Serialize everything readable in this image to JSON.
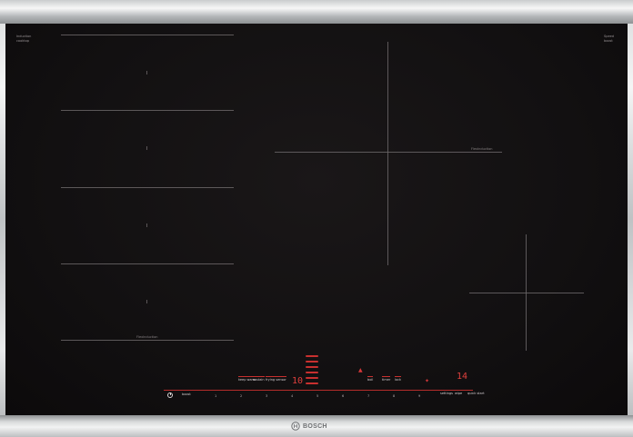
{
  "cooktop": {
    "top_left_label": [
      "Induction",
      "cooktop"
    ],
    "top_right_label": [
      "Speed",
      "boost"
    ],
    "flex_zone_label": "FlexInduction",
    "brand": "BOSCH",
    "controls": {
      "left_buttons": [
        "power",
        "boost"
      ],
      "mode_buttons": [
        "keep warm",
        "sustain",
        "frying sensor"
      ],
      "right_buttons": [
        "boil",
        "timer",
        "lock"
      ],
      "far_right_buttons": [
        "settings",
        "wipe",
        "quick start"
      ],
      "power_level_display": "10",
      "timer_display": "14",
      "slider_numbers": [
        "1",
        "2",
        "3",
        "4",
        "5",
        "6",
        "7",
        "8",
        "9"
      ]
    }
  },
  "colors": {
    "glass": "#121011",
    "display_red": "#d8383a",
    "steel": "#c4c6c8"
  }
}
